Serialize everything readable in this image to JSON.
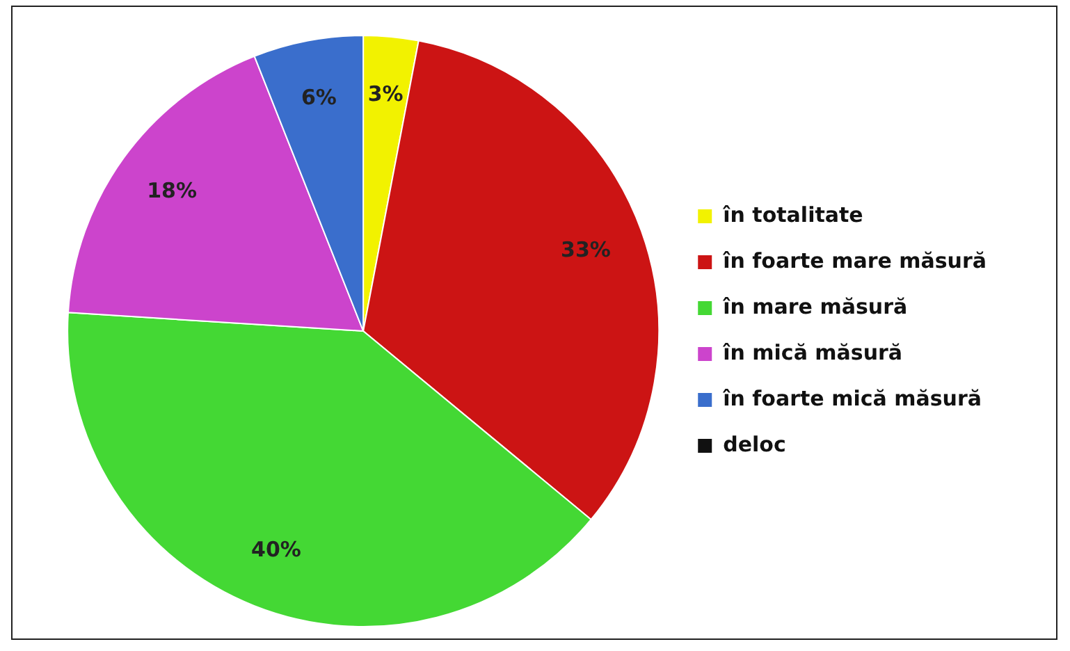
{
  "chart_data": {
    "type": "pie",
    "categories": [
      "în totalitate",
      "în foarte mare măsură",
      "în mare măsură",
      "în mică măsură",
      "în foarte mică măsură",
      "deloc"
    ],
    "values": [
      3,
      33,
      40,
      18,
      6,
      0
    ],
    "colors": [
      "#f2f200",
      "#cc1414",
      "#44d834",
      "#cc44cc",
      "#3a6ecc",
      "#111111"
    ],
    "value_labels": [
      "3%",
      "33%",
      "40%",
      "18%",
      "6%",
      null
    ],
    "legend": "right"
  }
}
